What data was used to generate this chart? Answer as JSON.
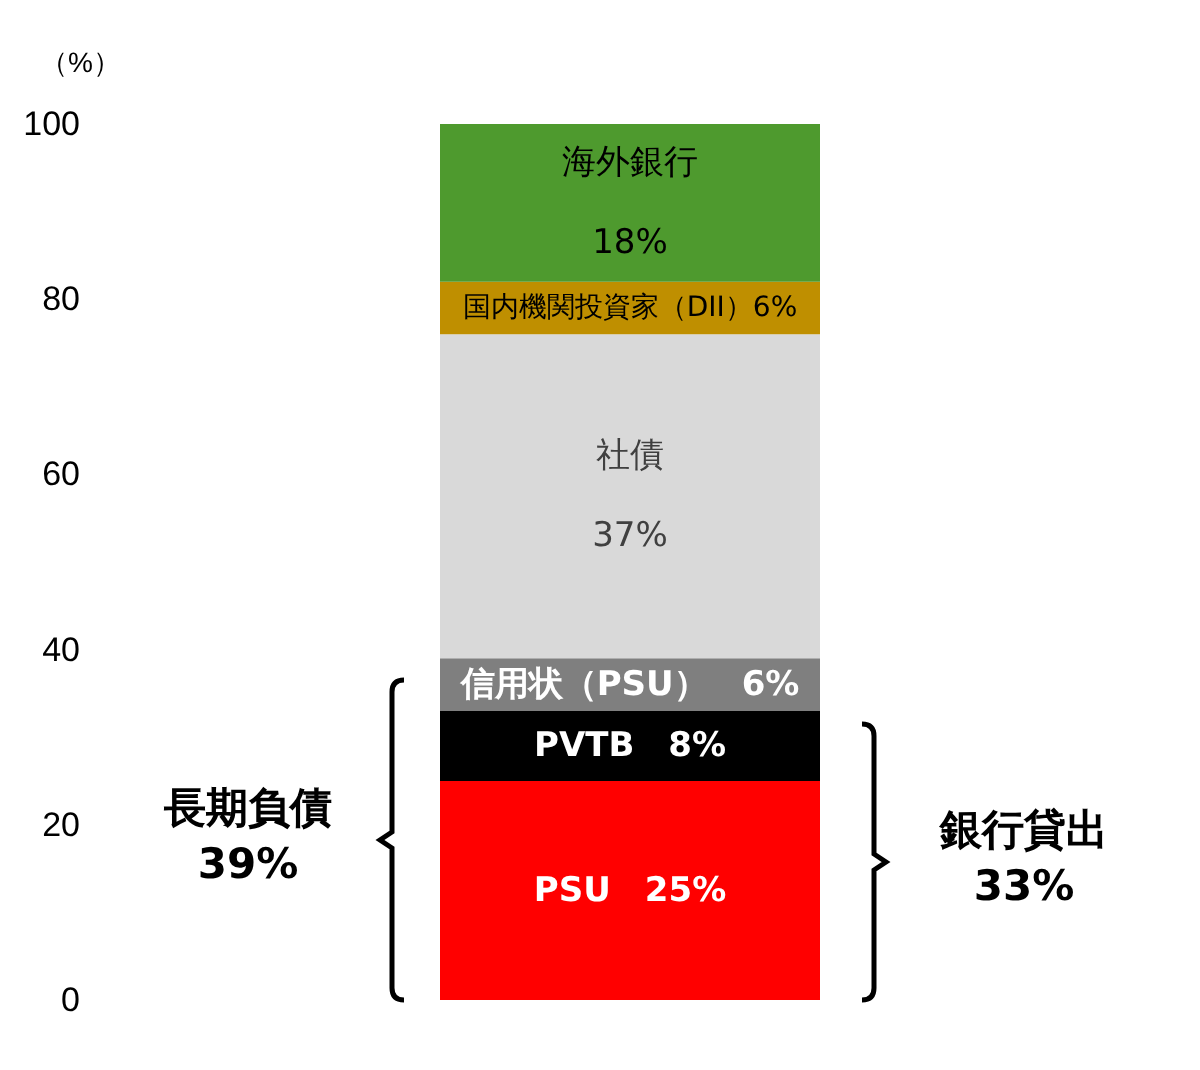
{
  "chart_data": {
    "type": "bar",
    "stacked": true,
    "ylabel": "（%）",
    "categories": [
      null
    ],
    "ylim": [
      0,
      100
    ],
    "yticks": [
      0,
      20,
      40,
      60,
      80,
      100
    ],
    "grid": false,
    "series": [
      {
        "name": "PSU",
        "color": "#ff0000",
        "values": [
          25
        ],
        "value_labels": [
          "25%"
        ]
      },
      {
        "name": "PVTB",
        "color": "#000000",
        "values": [
          8
        ],
        "value_labels": [
          "8%"
        ]
      },
      {
        "name": "信用状（PSU）",
        "color": "#7f7f7f",
        "values": [
          6
        ],
        "value_labels": [
          "6%"
        ]
      },
      {
        "name": "社債",
        "color": "#d9d9d9",
        "values": [
          37
        ],
        "value_labels": [
          "37%"
        ]
      },
      {
        "name": "国内機関投資家（DII）",
        "color": "#bf8f00",
        "values": [
          6
        ],
        "value_labels": [
          "6%"
        ]
      },
      {
        "name": "海外銀行",
        "color": "#4e9a2e",
        "values": [
          18
        ],
        "value_labels": [
          "18%"
        ]
      }
    ],
    "annotations": [
      "長期負債 39%",
      "銀行貸出 33%"
    ]
  }
}
